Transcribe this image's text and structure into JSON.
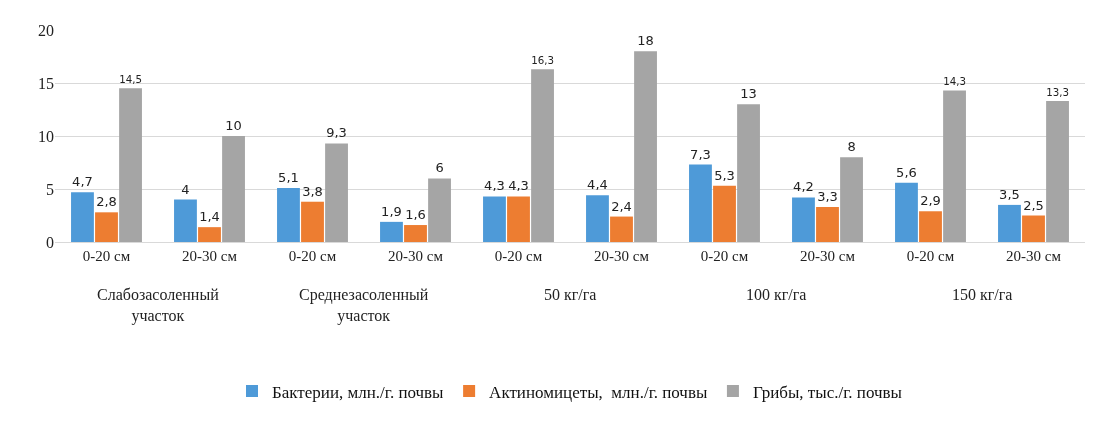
{
  "chart_data": {
    "type": "bar",
    "categories": [
      "0-20 см",
      "20-30 см",
      "0-20 см",
      "20-30 см",
      "0-20 см",
      "20-30 см",
      "0-20 см",
      "20-30 см",
      "0-20 см",
      "20-30 см"
    ],
    "annotations": [
      "Слабозасоленный участок",
      "Среднезасоленный участок",
      "50 кг/га",
      "100 кг/га",
      "150 кг/га"
    ],
    "series": [
      {
        "name": "Бактерии, млн./г. почвы",
        "color": "#4e9ad8",
        "values": [
          4.7,
          4,
          5.1,
          1.9,
          4.3,
          4.4,
          7.3,
          4.2,
          5.6,
          3.5
        ],
        "value_labels": [
          "4,7",
          "4",
          "5,1",
          "1,9",
          "4,3",
          "4,4",
          "7,3",
          "4,2",
          "5,6",
          "3,5"
        ]
      },
      {
        "name": "Актиномицеты,  млн./г. почвы",
        "color": "#ed7d31",
        "values": [
          2.8,
          1.4,
          3.8,
          1.6,
          4.3,
          2.4,
          5.3,
          3.3,
          2.9,
          2.5
        ],
        "value_labels": [
          "2,8",
          "1,4",
          "3,8",
          "1,6",
          "4,3",
          "2,4",
          "5,3",
          "3,3",
          "2,9",
          "2,5"
        ]
      },
      {
        "name": "Грибы, тыс./г. почвы",
        "color": "#a5a5a5",
        "values": [
          14.5,
          10,
          9.3,
          6,
          16.3,
          18,
          13,
          8,
          14.3,
          13.3
        ],
        "value_labels": [
          "14,5",
          "10",
          "9,3",
          "6",
          "16,3",
          "18",
          "13",
          "8",
          "14,3",
          "13,3"
        ]
      }
    ],
    "ylim": [
      0,
      20
    ],
    "yticks": [
      0,
      5,
      10,
      15,
      20
    ],
    "grid": "y",
    "legend": "bottom"
  }
}
